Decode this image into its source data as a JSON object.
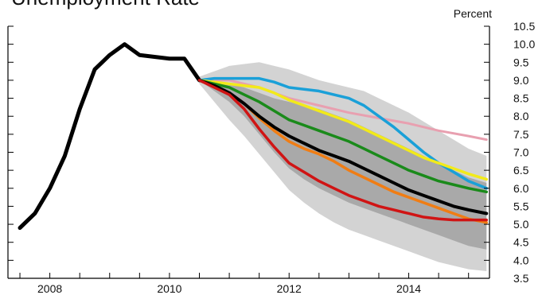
{
  "chart_data": {
    "type": "line",
    "title": "Unemployment Rate",
    "ylabel": "Percent",
    "xlim": [
      2007.3,
      2015.35
    ],
    "ylim": [
      3.5,
      10.5
    ],
    "yticks": [
      3.5,
      4.0,
      4.5,
      5.0,
      5.5,
      6.0,
      6.5,
      7.0,
      7.5,
      8.0,
      8.5,
      9.0,
      9.5,
      10.0,
      10.5
    ],
    "ytick_labels": [
      "3.5",
      "4.0",
      "4.5",
      "5.0",
      "5.5",
      "6.0",
      "6.5",
      "7.0",
      "7.5",
      "8.0",
      "8.5",
      "9.0",
      "9.5",
      "10.0",
      "10.5"
    ],
    "xticks": [
      2007.5,
      2008.0,
      2008.5,
      2009.0,
      2009.5,
      2010.0,
      2010.5,
      2011.0,
      2011.5,
      2012.0,
      2012.5,
      2013.0,
      2013.5,
      2014.0,
      2014.5,
      2015.0
    ],
    "xtick_labels": [
      {
        "x": 2008.0,
        "label": "2008"
      },
      {
        "x": 2010.0,
        "label": "2010"
      },
      {
        "x": 2012.0,
        "label": "2012"
      },
      {
        "x": 2014.0,
        "label": "2014"
      }
    ],
    "grid": false,
    "bands": [
      {
        "name": "outer",
        "color": "#d3d3d3",
        "x": [
          2010.5,
          2010.75,
          2011.0,
          2011.25,
          2011.5,
          2011.75,
          2012.0,
          2012.25,
          2012.5,
          2012.75,
          2013.0,
          2013.25,
          2013.5,
          2013.75,
          2014.0,
          2014.25,
          2014.5,
          2014.75,
          2015.0,
          2015.3
        ],
        "upper": [
          9.1,
          9.25,
          9.4,
          9.45,
          9.5,
          9.4,
          9.3,
          9.15,
          9.0,
          8.9,
          8.8,
          8.7,
          8.5,
          8.3,
          8.1,
          7.85,
          7.6,
          7.35,
          7.1,
          6.9
        ],
        "lower": [
          8.9,
          8.4,
          7.9,
          7.45,
          6.95,
          6.45,
          5.95,
          5.6,
          5.3,
          5.05,
          4.85,
          4.7,
          4.55,
          4.4,
          4.25,
          4.1,
          3.95,
          3.85,
          3.75,
          3.7
        ]
      },
      {
        "name": "middle",
        "color": "#a9a9a9",
        "x": [
          2010.5,
          2010.75,
          2011.0,
          2011.25,
          2011.5,
          2011.75,
          2012.0,
          2012.25,
          2012.5,
          2012.75,
          2013.0,
          2013.25,
          2013.5,
          2013.75,
          2014.0,
          2014.25,
          2014.5,
          2014.75,
          2015.0,
          2015.3
        ],
        "upper": [
          9.0,
          8.95,
          8.9,
          8.8,
          8.65,
          8.5,
          8.4,
          8.3,
          8.2,
          8.05,
          7.9,
          7.7,
          7.5,
          7.3,
          7.1,
          6.9,
          6.7,
          6.5,
          6.3,
          6.15
        ],
        "lower": [
          9.0,
          8.7,
          8.4,
          8.0,
          7.5,
          7.0,
          6.55,
          6.25,
          6.0,
          5.8,
          5.6,
          5.45,
          5.3,
          5.15,
          5.0,
          4.85,
          4.7,
          4.55,
          4.4,
          4.3
        ]
      }
    ],
    "series": [
      {
        "color": "#000000",
        "width": 5,
        "x": [
          2007.5,
          2007.75,
          2008.0,
          2008.25,
          2008.5,
          2008.75,
          2009.0,
          2009.25,
          2009.5,
          2009.75,
          2010.0,
          2010.25,
          2010.5
        ],
        "values": [
          4.9,
          5.3,
          6.0,
          6.9,
          8.2,
          9.3,
          9.7,
          10.0,
          9.7,
          9.65,
          9.6,
          9.6,
          9.0
        ]
      },
      {
        "color": "#e8a0b0",
        "width": 3,
        "x": [
          2010.5,
          2011.0,
          2011.5,
          2012.0,
          2012.5,
          2013.0,
          2013.5,
          2014.0,
          2014.5,
          2015.0,
          2015.3
        ],
        "values": [
          9.0,
          9.0,
          8.8,
          8.5,
          8.3,
          8.1,
          7.95,
          7.8,
          7.6,
          7.45,
          7.35
        ]
      },
      {
        "color": "#1aa0d8",
        "width": 3.5,
        "x": [
          2010.5,
          2010.75,
          2011.0,
          2011.25,
          2011.5,
          2011.75,
          2012.0,
          2012.25,
          2012.5,
          2012.75,
          2013.0,
          2013.25,
          2013.5,
          2013.75,
          2014.0,
          2014.25,
          2014.5,
          2014.75,
          2015.0,
          2015.3
        ],
        "values": [
          9.0,
          9.05,
          9.05,
          9.05,
          9.05,
          8.95,
          8.8,
          8.75,
          8.7,
          8.6,
          8.5,
          8.3,
          8.0,
          7.7,
          7.35,
          7.0,
          6.7,
          6.45,
          6.2,
          6.0
        ]
      },
      {
        "color": "#f2ea1a",
        "width": 3.5,
        "x": [
          2010.5,
          2010.75,
          2011.0,
          2011.25,
          2011.5,
          2011.75,
          2012.0,
          2012.25,
          2012.5,
          2012.75,
          2013.0,
          2013.25,
          2013.5,
          2013.75,
          2014.0,
          2014.25,
          2014.5,
          2014.75,
          2015.0,
          2015.3
        ],
        "values": [
          9.0,
          8.95,
          8.9,
          8.85,
          8.8,
          8.65,
          8.45,
          8.3,
          8.15,
          8.0,
          7.85,
          7.65,
          7.45,
          7.25,
          7.05,
          6.85,
          6.7,
          6.55,
          6.4,
          6.25
        ]
      },
      {
        "color": "#1a8a1a",
        "width": 3.5,
        "x": [
          2010.5,
          2010.75,
          2011.0,
          2011.25,
          2011.5,
          2011.75,
          2012.0,
          2012.25,
          2012.5,
          2012.75,
          2013.0,
          2013.25,
          2013.5,
          2013.75,
          2014.0,
          2014.25,
          2014.5,
          2014.75,
          2015.0,
          2015.3
        ],
        "values": [
          9.0,
          8.9,
          8.8,
          8.6,
          8.4,
          8.15,
          7.9,
          7.75,
          7.6,
          7.45,
          7.3,
          7.1,
          6.9,
          6.7,
          6.5,
          6.35,
          6.2,
          6.1,
          6.0,
          5.9
        ]
      },
      {
        "color": "#f07d14",
        "width": 3.5,
        "x": [
          2010.5,
          2010.75,
          2011.0,
          2011.25,
          2011.5,
          2011.75,
          2012.0,
          2012.25,
          2012.5,
          2012.75,
          2013.0,
          2013.25,
          2013.5,
          2013.75,
          2014.0,
          2014.25,
          2014.5,
          2014.75,
          2015.0,
          2015.3
        ],
        "values": [
          9.0,
          8.85,
          8.65,
          8.35,
          7.95,
          7.6,
          7.3,
          7.1,
          6.95,
          6.75,
          6.5,
          6.3,
          6.1,
          5.9,
          5.75,
          5.6,
          5.45,
          5.3,
          5.15,
          5.05
        ]
      },
      {
        "color": "#000000",
        "width": 4,
        "x": [
          2010.5,
          2010.75,
          2011.0,
          2011.25,
          2011.5,
          2011.75,
          2012.0,
          2012.25,
          2012.5,
          2012.75,
          2013.0,
          2013.25,
          2013.5,
          2013.75,
          2014.0,
          2014.25,
          2014.5,
          2014.75,
          2015.0,
          2015.3
        ],
        "values": [
          9.0,
          8.85,
          8.65,
          8.35,
          8.0,
          7.7,
          7.45,
          7.25,
          7.05,
          6.9,
          6.75,
          6.55,
          6.35,
          6.15,
          5.95,
          5.8,
          5.65,
          5.5,
          5.4,
          5.3
        ]
      },
      {
        "color": "#d01414",
        "width": 3.5,
        "x": [
          2010.5,
          2010.75,
          2011.0,
          2011.25,
          2011.5,
          2011.75,
          2012.0,
          2012.25,
          2012.5,
          2012.75,
          2013.0,
          2013.25,
          2013.5,
          2013.75,
          2014.0,
          2014.25,
          2014.5,
          2014.75,
          2015.0,
          2015.3
        ],
        "values": [
          9.0,
          8.8,
          8.6,
          8.2,
          7.65,
          7.15,
          6.7,
          6.45,
          6.2,
          6.0,
          5.8,
          5.65,
          5.5,
          5.4,
          5.3,
          5.2,
          5.15,
          5.12,
          5.12,
          5.12
        ]
      }
    ]
  }
}
